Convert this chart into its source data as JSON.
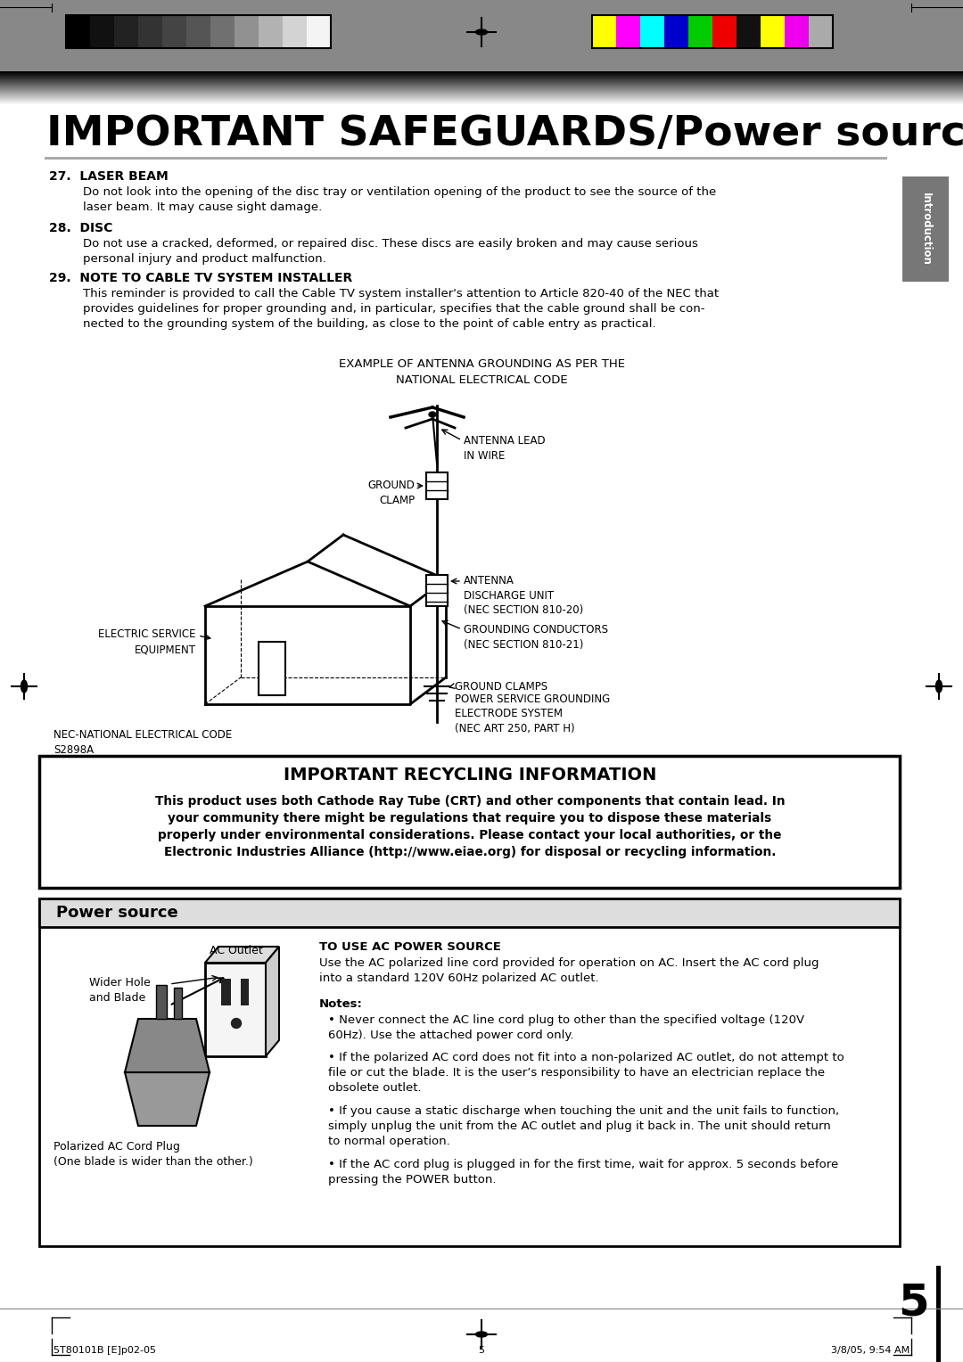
{
  "bg_color": "#ffffff",
  "title_part1": "IMPORTANT SAFEGUARDS/",
  "title_part2": "Power source",
  "s27_title": "27.  LASER BEAM",
  "s27_body": "Do not look into the opening of the disc tray or ventilation opening of the product to see the source of the\nlaser beam. It may cause sight damage.",
  "s28_title": "28.  DISC",
  "s28_body": "Do not use a cracked, deformed, or repaired disc. These discs are easily broken and may cause serious\npersonal injury and product malfunction.",
  "s29_title": "29.  NOTE TO CABLE TV SYSTEM INSTALLER",
  "s29_body": "This reminder is provided to call the Cable TV system installer's attention to Article 820-40 of the NEC that\nprovides guidelines for proper grounding and, in particular, specifies that the cable ground shall be con-\nnected to the grounding system of the building, as close to the point of cable entry as practical.",
  "antenna_title": "EXAMPLE OF ANTENNA GROUNDING AS PER THE\nNATIONAL ELECTRICAL CODE",
  "nec_label": "NEC-NATIONAL ELECTRICAL CODE\nS2898A",
  "antenna_lead": "ANTENNA LEAD\nIN WIRE",
  "ground_clamp_lbl": "GROUND\nCLAMP",
  "elec_service": "ELECTRIC SERVICE\nEQUIPMENT",
  "antenna_discharge": "ANTENNA\nDISCHARGE UNIT\n(NEC SECTION 810-20)",
  "grounding_cond": "GROUNDING CONDUCTORS\n(NEC SECTION 810-21)",
  "ground_clamps_bot": "GROUND CLAMPS",
  "power_service": "POWER SERVICE GROUNDING\nELECTRODE SYSTEM\n(NEC ART 250, PART H)",
  "recycling_title": "IMPORTANT RECYCLING INFORMATION",
  "recycling_body": "This product uses both Cathode Ray Tube (CRT) and other components that contain lead. In\nyour community there might be regulations that require you to dispose these materials\nproperly under environmental considerations. Please contact your local authorities, or the\nElectronic Industries Alliance (http://www.eiae.org) for disposal or recycling information.",
  "ps_title": "Power source",
  "ac_title": "TO USE AC POWER SOURCE",
  "ac_body": "Use the AC polarized line cord provided for operation on AC. Insert the AC cord plug\ninto a standard 120V 60Hz polarized AC outlet.",
  "notes_label": "Notes:",
  "notes": [
    "Never connect the AC line cord plug to other than the specified voltage (120V\n60Hz). Use the attached power cord only.",
    "If the polarized AC cord does not fit into a non-polarized AC outlet, do not attempt to\nfile or cut the blade. It is the user’s responsibility to have an electrician replace the\nobsolete outlet.",
    "If you cause a static discharge when touching the unit and the unit fails to function,\nsimply unplug the unit from the AC outlet and plug it back in. The unit should return\nto normal operation.",
    "If the AC cord plug is plugged in for the first time, wait for approx. 5 seconds before\npressing the POWER button."
  ],
  "wider_hole_label": "Wider Hole\nand Blade",
  "ac_outlet_label": "AC Outlet",
  "polarized_label": "Polarized AC Cord Plug\n(One blade is wider than the other.)",
  "footer_left": "5T80101B [E]p02-05",
  "footer_center": "5",
  "footer_right": "3/8/05, 9:54 AM",
  "page_num": "5",
  "bw_colors": [
    "#000000",
    "#111111",
    "#222222",
    "#333333",
    "#444444",
    "#555555",
    "#707070",
    "#919191",
    "#b2b2b2",
    "#d3d3d3",
    "#f4f4f4"
  ],
  "color_bars": [
    "#ffff00",
    "#ff00ff",
    "#00ffff",
    "#0000cc",
    "#00cc00",
    "#ee0000",
    "#111111",
    "#ffff00",
    "#ee00ee",
    "#aaaaaa"
  ],
  "header_dark": "#888888",
  "sidebar_color": "#777777",
  "rule_color": "#aaaaaa",
  "recycling_border": "#000000",
  "ps_header_bg": "#dddddd"
}
